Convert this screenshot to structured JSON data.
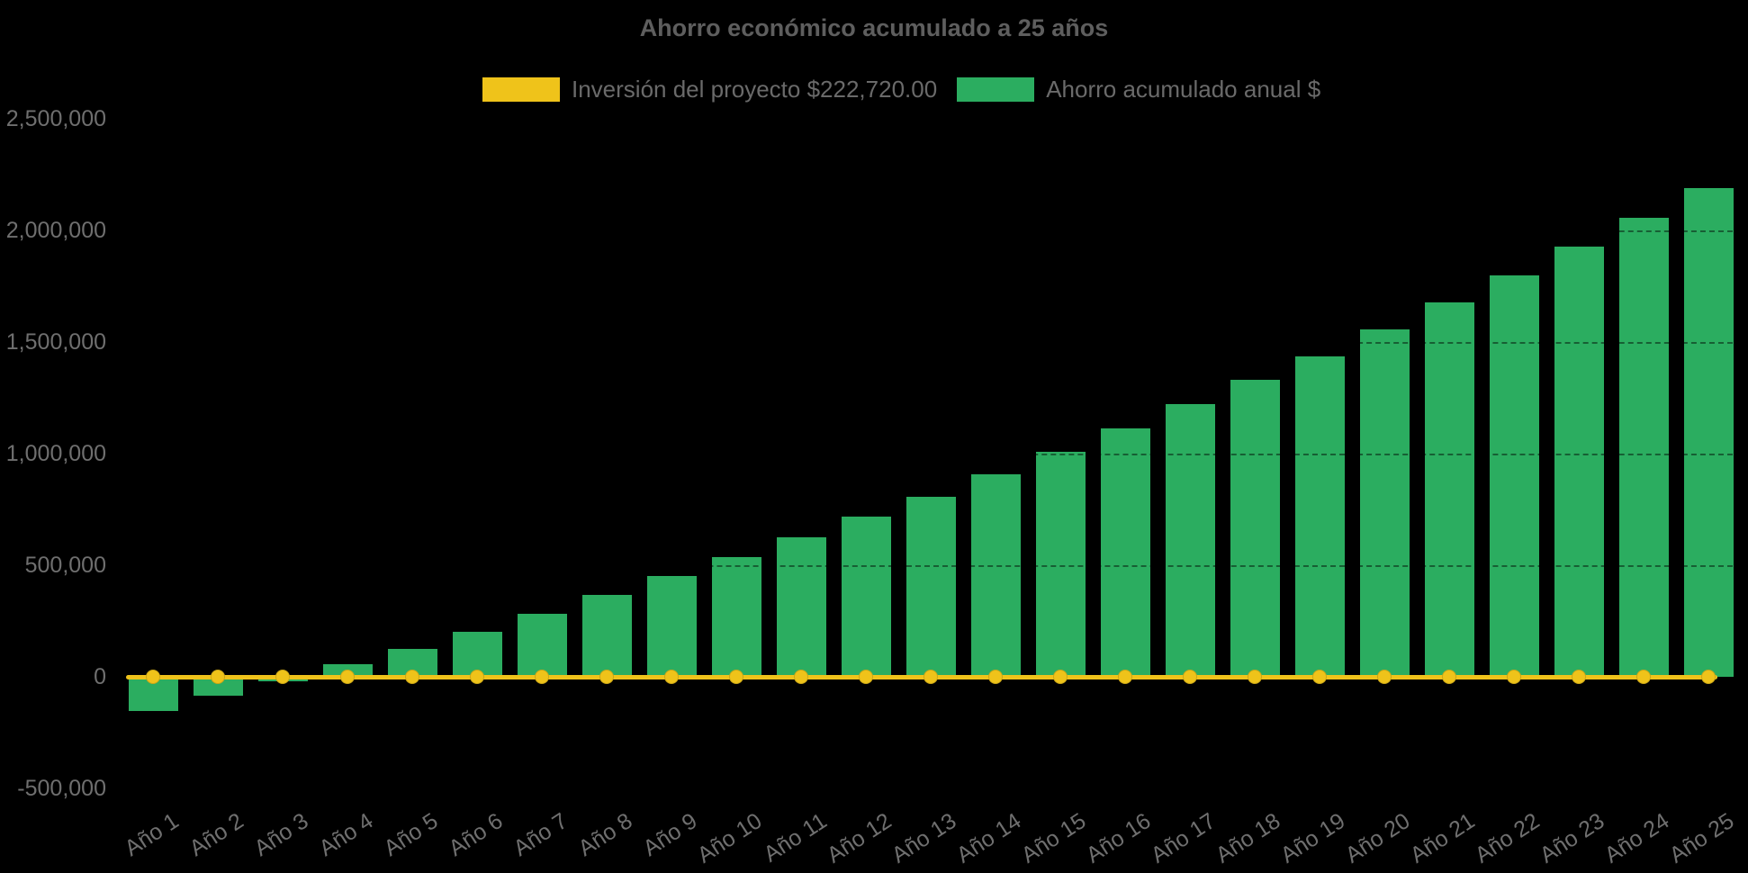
{
  "title": "Ahorro económico acumulado a 25 años",
  "colors": {
    "background": "#000000",
    "bar_green": "#2bad60",
    "line_yellow": "#efc31a",
    "title_text": "#5e5e5e",
    "axis_text": "#6f6f6f",
    "legend_text": "#6a6a6a"
  },
  "legend": {
    "items": [
      {
        "label": "Inversión del proyecto $222,720.00",
        "color": "#efc31a",
        "series": "line"
      },
      {
        "label": "Ahorro acumulado anual $",
        "color": "#2bad60",
        "series": "bar"
      }
    ]
  },
  "y_axis": {
    "ticks": [
      {
        "label": "2,500,000",
        "value": 2500000
      },
      {
        "label": "2,000,000",
        "value": 2000000
      },
      {
        "label": "1,500,000",
        "value": 1500000
      },
      {
        "label": "1,000,000",
        "value": 1000000
      },
      {
        "label": "500,000",
        "value": 500000
      },
      {
        "label": "0",
        "value": 0
      },
      {
        "label": "-500,000",
        "value": -500000
      }
    ]
  },
  "chart_data": {
    "type": "bar",
    "title": "Ahorro económico acumulado a 25 años",
    "categories": [
      "Año 1",
      "Año 2",
      "Año 3",
      "Año 4",
      "Año 5",
      "Año 6",
      "Año 7",
      "Año 8",
      "Año 9",
      "Año 10",
      "Año 11",
      "Año 12",
      "Año 13",
      "Año 14",
      "Año 15",
      "Año 16",
      "Año 17",
      "Año 18",
      "Año 19",
      "Año 20",
      "Año 21",
      "Año 22",
      "Año 23",
      "Año 24",
      "Año 25"
    ],
    "series": [
      {
        "name": "Ahorro acumulado anual $",
        "type": "bar",
        "color": "#2bad60",
        "values": [
          -155000,
          -85000,
          -20000,
          55000,
          125000,
          202000,
          283000,
          365000,
          452000,
          535000,
          625000,
          718000,
          806000,
          907000,
          1008000,
          1113000,
          1222000,
          1330000,
          1435000,
          1556000,
          1677000,
          1798000,
          1927000,
          2056000,
          2189000
        ]
      },
      {
        "name": "Inversión del proyecto $222,720.00",
        "type": "line",
        "color": "#efc31a",
        "marker": "circle",
        "plotted_level": 0,
        "values": [
          0,
          0,
          0,
          0,
          0,
          0,
          0,
          0,
          0,
          0,
          0,
          0,
          0,
          0,
          0,
          0,
          0,
          0,
          0,
          0,
          0,
          0,
          0,
          0,
          0
        ]
      }
    ],
    "xlabel": "",
    "ylabel": "",
    "ylim": [
      -500000,
      2500000
    ],
    "grid": "horizontal-dashed",
    "legend_position": "top-center",
    "x_tick_rotation": -33
  }
}
